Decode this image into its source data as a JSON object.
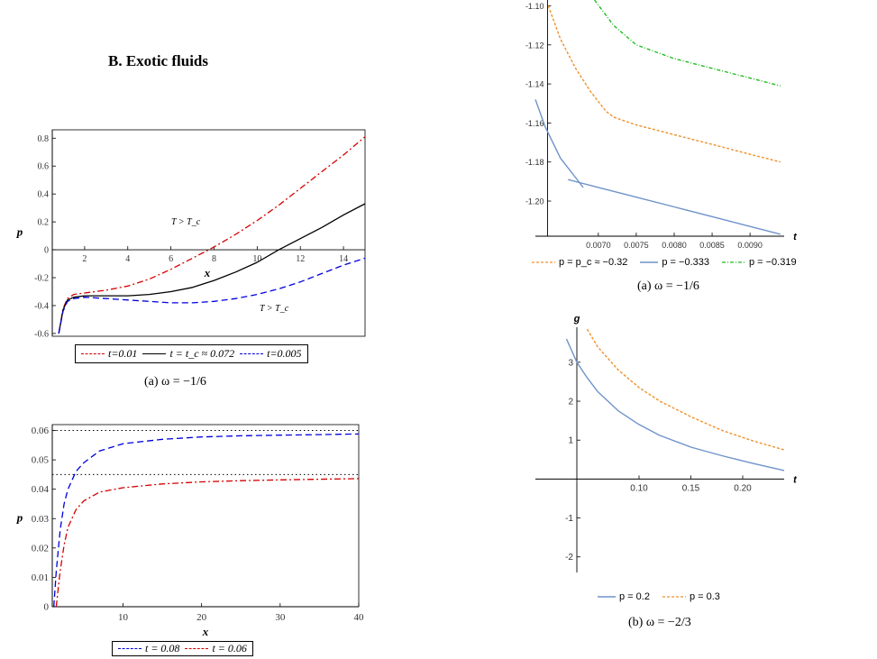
{
  "section_title": "B.   Exotic fluids",
  "captions": {
    "left_a": "(a)  ω = −1/6",
    "right_a": "(a)  ω = −1/6",
    "right_b": "(b)  ω = −2/3"
  },
  "chart_data": [
    {
      "id": "left-top",
      "type": "line",
      "xlabel": "x",
      "ylabel": "p",
      "xlim": [
        0.5,
        15
      ],
      "ylim": [
        -0.62,
        0.86
      ],
      "xticks": [
        2,
        4,
        6,
        8,
        10,
        12,
        14
      ],
      "yticks": [
        -0.6,
        -0.4,
        -0.2,
        0,
        0.2,
        0.4,
        0.6,
        0.8
      ],
      "annotations": [
        "T > T_c",
        "T > T_c"
      ],
      "series": [
        {
          "name": "t=0.01",
          "color": "#d40000",
          "dash": "dashdot",
          "x": [
            0.8,
            1.0,
            1.2,
            1.5,
            2,
            3,
            4,
            5,
            6,
            7,
            8,
            9,
            10,
            11,
            12,
            13,
            14,
            15
          ],
          "y": [
            -0.6,
            -0.42,
            -0.35,
            -0.32,
            -0.31,
            -0.29,
            -0.26,
            -0.21,
            -0.14,
            -0.06,
            0.02,
            0.11,
            0.21,
            0.32,
            0.44,
            0.56,
            0.68,
            0.81
          ]
        },
        {
          "name": "t = t_c ≈ 0.072",
          "color": "#000000",
          "dash": "solid",
          "x": [
            0.8,
            1.0,
            1.2,
            1.5,
            2,
            3,
            4,
            5,
            6,
            7,
            8,
            9,
            10,
            11,
            12,
            13,
            14,
            15
          ],
          "y": [
            -0.6,
            -0.43,
            -0.36,
            -0.34,
            -0.33,
            -0.33,
            -0.33,
            -0.32,
            -0.3,
            -0.27,
            -0.22,
            -0.16,
            -0.09,
            0.0,
            0.08,
            0.16,
            0.25,
            0.33
          ]
        },
        {
          "name": "t=0.005",
          "color": "#0000dd",
          "dash": "dashed",
          "x": [
            0.8,
            1.0,
            1.2,
            1.5,
            2,
            3,
            4,
            5,
            6,
            7,
            8,
            9,
            10,
            11,
            12,
            13,
            14,
            15
          ],
          "y": [
            -0.6,
            -0.44,
            -0.37,
            -0.35,
            -0.34,
            -0.35,
            -0.36,
            -0.37,
            -0.38,
            -0.38,
            -0.37,
            -0.35,
            -0.32,
            -0.28,
            -0.23,
            -0.17,
            -0.11,
            -0.06
          ]
        }
      ],
      "legend": [
        "t=0.01",
        "t = t_c ≈ 0.072",
        "t=0.005"
      ]
    },
    {
      "id": "left-bottom",
      "type": "line",
      "xlabel": "x",
      "ylabel": "p",
      "xlim": [
        1,
        40
      ],
      "ylim": [
        0,
        0.062
      ],
      "xticks": [
        10,
        20,
        30,
        40
      ],
      "yticks": [
        0,
        0.01,
        0.02,
        0.03,
        0.04,
        0.05,
        0.06
      ],
      "asymptotes": [
        0.06,
        0.045
      ],
      "series": [
        {
          "name": "t = 0.08",
          "color": "#0000dd",
          "dash": "dashed",
          "x": [
            1.2,
            1.5,
            2,
            2.5,
            3,
            4,
            5,
            7,
            10,
            15,
            20,
            25,
            30,
            35,
            40
          ],
          "y": [
            0.0,
            0.012,
            0.026,
            0.035,
            0.04,
            0.046,
            0.049,
            0.053,
            0.0555,
            0.057,
            0.0578,
            0.0582,
            0.0584,
            0.0586,
            0.0588
          ]
        },
        {
          "name": "t = 0.06",
          "color": "#d40000",
          "dash": "dashdot",
          "x": [
            1.5,
            2,
            2.5,
            3,
            4,
            5,
            7,
            10,
            15,
            20,
            25,
            30,
            35,
            40
          ],
          "y": [
            0.0,
            0.012,
            0.021,
            0.027,
            0.033,
            0.036,
            0.039,
            0.0405,
            0.0418,
            0.0425,
            0.0429,
            0.0432,
            0.0434,
            0.0436
          ]
        }
      ],
      "legend": [
        "t = 0.08",
        "t = 0.06"
      ]
    },
    {
      "id": "right-top",
      "type": "line",
      "xlabel": "t",
      "xlim": [
        0.00617,
        0.00945
      ],
      "ylim": [
        -1.218,
        -1.097
      ],
      "xticks": [
        0.007,
        0.0075,
        0.008,
        0.0085,
        0.009
      ],
      "xtick_labels": [
        "0.0070",
        "0.0075",
        "0.0080",
        "0.0085",
        "0.0090"
      ],
      "yticks": [
        -1.2,
        -1.18,
        -1.16,
        -1.14,
        -1.12,
        -1.1
      ],
      "ytick_labels": [
        "-1.20",
        "-1.18",
        "-1.16",
        "-1.14",
        "-1.12",
        "-1.10"
      ],
      "series": [
        {
          "name": "p = p_c ≈ −0.32",
          "color": "#f0902a",
          "dash": "dashed",
          "x": [
            0.00634,
            0.0065,
            0.0067,
            0.0069,
            0.0071,
            0.0072,
            0.0075,
            0.008,
            0.0085,
            0.009,
            0.0094
          ],
          "y": [
            -1.1,
            -1.117,
            -1.132,
            -1.144,
            -1.154,
            -1.157,
            -1.161,
            -1.166,
            -1.171,
            -1.176,
            -1.18
          ]
        },
        {
          "name": "p = −0.333",
          "color": "#6f93c9",
          "dash": "solid",
          "x": [
            0.00617,
            0.0063,
            0.0065,
            0.0067,
            0.0068
          ],
          "y": [
            -1.148,
            -1.162,
            -1.178,
            -1.188,
            -1.193
          ]
        },
        {
          "name": "p = −0.333 (lower branch)",
          "color": "#6f93c9",
          "dash": "solid",
          "x": [
            0.0066,
            0.007,
            0.0075,
            0.008,
            0.0085,
            0.009,
            0.0094
          ],
          "y": [
            -1.189,
            -1.193,
            -1.198,
            -1.203,
            -1.208,
            -1.213,
            -1.217
          ]
        },
        {
          "name": "p = −0.319",
          "color": "#22bb22",
          "dash": "dashdot",
          "x": [
            0.00695,
            0.0072,
            0.0075,
            0.008,
            0.0085,
            0.009,
            0.0094
          ],
          "y": [
            -1.097,
            -1.11,
            -1.12,
            -1.127,
            -1.132,
            -1.137,
            -1.141
          ]
        }
      ],
      "legend": [
        "p = p_c ≈ −0.32",
        "p = −0.333",
        "p = −0.319"
      ]
    },
    {
      "id": "right-bottom",
      "type": "line",
      "xlabel": "t",
      "ylabel": "g",
      "xlim": [
        0.0,
        0.24
      ],
      "ylim": [
        -2.4,
        3.9
      ],
      "xticks": [
        0.1,
        0.15,
        0.2
      ],
      "xtick_labels": [
        "0.10",
        "0.15",
        "0.20"
      ],
      "yticks": [
        -2,
        -1,
        1,
        2,
        3
      ],
      "series": [
        {
          "name": "p = 0.2",
          "color": "#6f93c9",
          "dash": "solid",
          "x": [
            0.03,
            0.04,
            0.05,
            0.06,
            0.08,
            0.1,
            0.12,
            0.15,
            0.18,
            0.21,
            0.24
          ],
          "y": [
            3.6,
            3.0,
            2.6,
            2.25,
            1.75,
            1.4,
            1.12,
            0.82,
            0.6,
            0.4,
            0.22
          ]
        },
        {
          "name": "p = 0.3",
          "color": "#f0902a",
          "dash": "dashed",
          "x": [
            0.05,
            0.06,
            0.08,
            0.1,
            0.12,
            0.15,
            0.18,
            0.21,
            0.24
          ],
          "y": [
            3.85,
            3.4,
            2.8,
            2.35,
            2.0,
            1.6,
            1.25,
            0.98,
            0.75
          ]
        }
      ],
      "legend": [
        "p = 0.2",
        "p = 0.3"
      ]
    }
  ]
}
